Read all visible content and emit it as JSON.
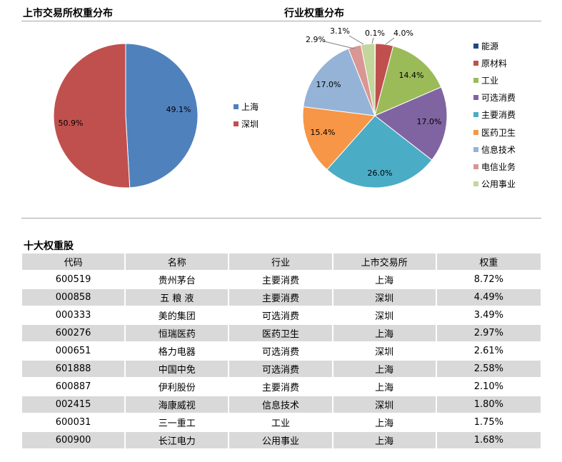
{
  "exchange_section": {
    "title": "上市交易所权重分布"
  },
  "industry_section": {
    "title": "行业权重分布"
  },
  "top10_section": {
    "title": "十大权重股"
  },
  "chart_data": [
    {
      "type": "pie",
      "title": "上市交易所权重分布",
      "labels": [
        "上海",
        "深圳"
      ],
      "values": [
        49.1,
        50.9
      ],
      "value_labels": [
        "49.1%",
        "50.9%"
      ],
      "colors": [
        "#4f81bd",
        "#c0504d"
      ],
      "legend_position": "right"
    },
    {
      "type": "pie",
      "title": "行业权重分布",
      "labels": [
        "能源",
        "原材料",
        "工业",
        "可选消费",
        "主要消费",
        "医药卫生",
        "信息技术",
        "电信业务",
        "公用事业"
      ],
      "values": [
        0.1,
        4.0,
        14.4,
        17.0,
        26.0,
        15.4,
        17.0,
        2.9,
        3.1
      ],
      "value_labels": [
        "0.1%",
        "4.0%",
        "14.4%",
        "17.0%",
        "26.0%",
        "15.4%",
        "17.0%",
        "2.9%",
        "3.1%"
      ],
      "colors": [
        "#1f497d",
        "#c0504d",
        "#9bbb59",
        "#8064a2",
        "#4bacc6",
        "#f79646",
        "#95b3d7",
        "#d99694",
        "#c3d69b"
      ],
      "legend_position": "right"
    },
    {
      "type": "table",
      "title": "十大权重股",
      "headers": [
        "代码",
        "名称",
        "行业",
        "上市交易所",
        "权重"
      ],
      "rows": [
        [
          "600519",
          "贵州茅台",
          "主要消费",
          "上海",
          "8.72%"
        ],
        [
          "000858",
          "五 粮 液",
          "主要消费",
          "深圳",
          "4.49%"
        ],
        [
          "000333",
          "美的集团",
          "可选消费",
          "深圳",
          "3.49%"
        ],
        [
          "600276",
          "恒瑞医药",
          "医药卫生",
          "上海",
          "2.97%"
        ],
        [
          "000651",
          "格力电器",
          "可选消费",
          "深圳",
          "2.61%"
        ],
        [
          "601888",
          "中国中免",
          "可选消费",
          "上海",
          "2.58%"
        ],
        [
          "600887",
          "伊利股份",
          "主要消费",
          "上海",
          "2.10%"
        ],
        [
          "002415",
          "海康威视",
          "信息技术",
          "深圳",
          "1.80%"
        ],
        [
          "600031",
          "三一重工",
          "工业",
          "上海",
          "1.75%"
        ],
        [
          "600900",
          "长江电力",
          "公用事业",
          "上海",
          "1.68%"
        ]
      ]
    }
  ]
}
